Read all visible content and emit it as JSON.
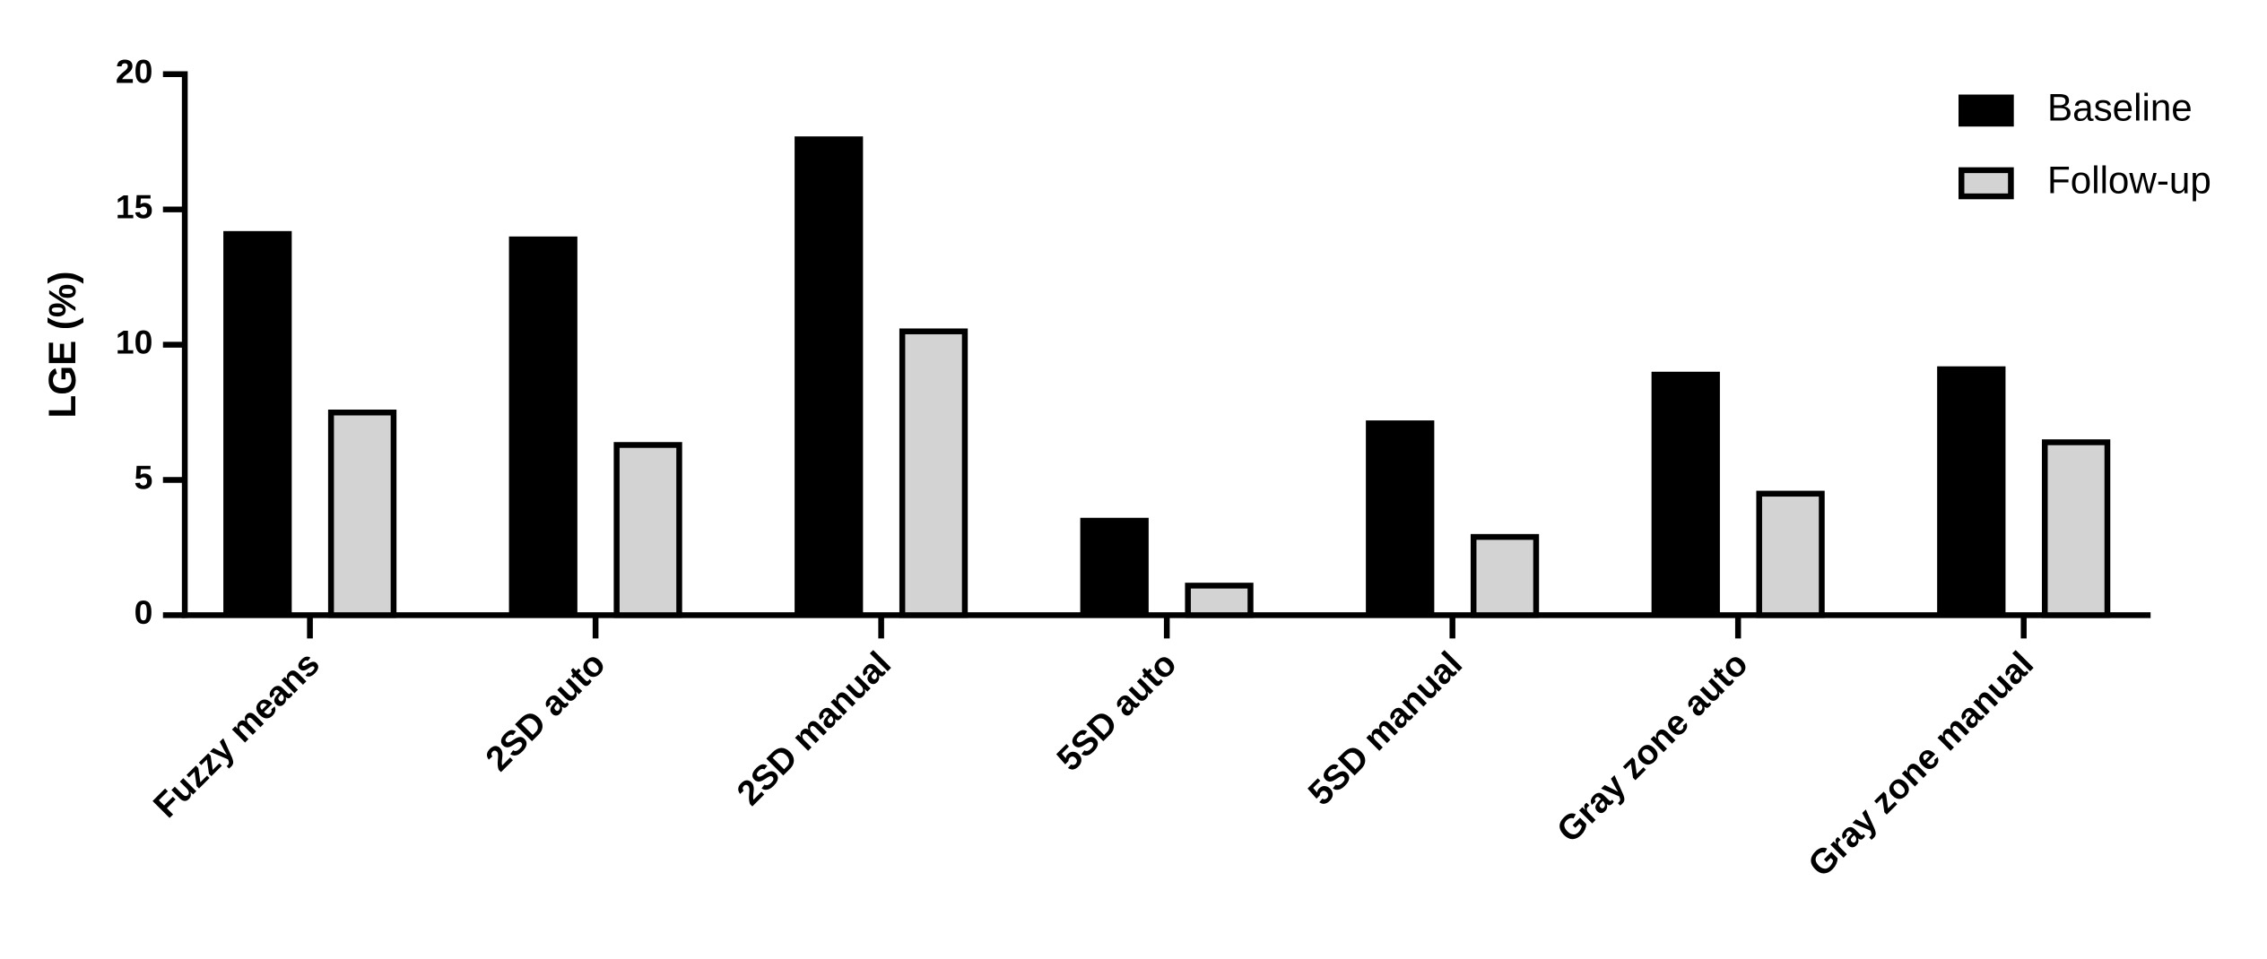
{
  "chart_data": {
    "type": "bar",
    "y_label": "LGE (%)",
    "categories": [
      "Fuzzy means",
      "2SD auto",
      "2SD manual",
      "5SD auto",
      "5SD manual",
      "Gray zone auto",
      "Gray zone manual"
    ],
    "series": [
      {
        "name": "Baseline",
        "color": "#000000",
        "values": [
          14.2,
          14.0,
          17.7,
          3.6,
          7.2,
          9.0,
          9.2
        ]
      },
      {
        "name": "Follow-up",
        "color": "#d3d3d3",
        "values": [
          7.6,
          6.4,
          10.6,
          1.2,
          3.0,
          4.6,
          6.5
        ]
      }
    ],
    "ylim": [
      0,
      20
    ],
    "yticks": [
      0,
      5,
      10,
      15,
      20
    ],
    "grid": false,
    "legend": "upper right"
  }
}
